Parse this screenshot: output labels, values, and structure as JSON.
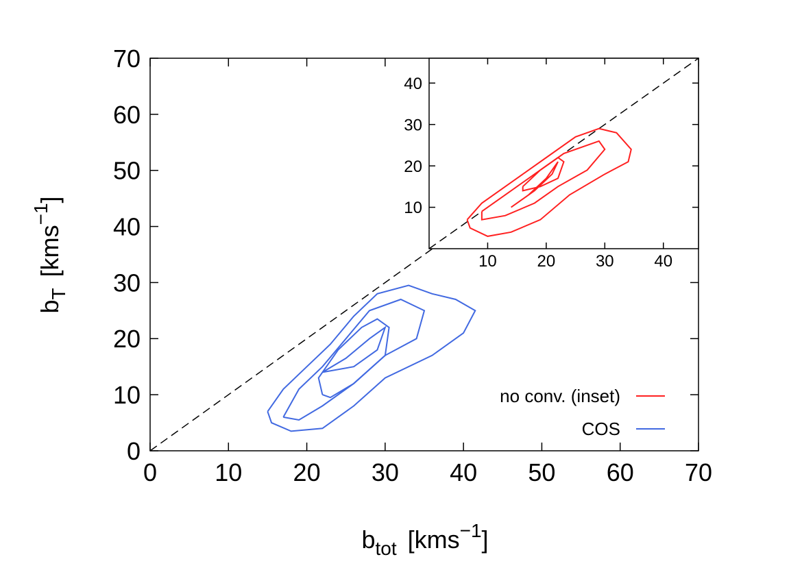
{
  "chart_data": [
    {
      "type": "line",
      "x_label": {
        "base": "b",
        "sub": "tot",
        "unit": "[kms",
        "sup": "−1",
        "close": "]"
      },
      "y_label": {
        "base": "b",
        "sub": "T",
        "unit": "[kms",
        "sup": "−1",
        "close": "]"
      },
      "xlim": [
        0,
        70
      ],
      "ylim": [
        0,
        70
      ],
      "xticks": [
        0,
        10,
        20,
        30,
        40,
        50,
        60,
        70
      ],
      "yticks": [
        0,
        10,
        20,
        30,
        40,
        50,
        60,
        70
      ],
      "legend": "lower right",
      "series": [
        {
          "name": "COS",
          "color": "#4169e1",
          "contours": [
            {
              "x": [
                15,
                17,
                20,
                23,
                26,
                29,
                33,
                36,
                39,
                41.5,
                40,
                36,
                30,
                26,
                22,
                18,
                15.5,
                15
              ],
              "y": [
                7,
                11,
                15,
                19,
                24,
                28,
                29.5,
                28,
                27,
                25,
                21,
                17,
                13,
                8,
                4,
                3.5,
                5,
                7
              ]
            },
            {
              "x": [
                17,
                19,
                22,
                25,
                28,
                32,
                35,
                34,
                30,
                26,
                22,
                19,
                17
              ],
              "y": [
                6,
                11,
                15,
                20,
                25,
                27,
                25,
                20,
                17,
                12,
                8,
                5.5,
                6
              ]
            },
            {
              "x": [
                22,
                21.5,
                24,
                27,
                29,
                30.5,
                30,
                26,
                23,
                22
              ],
              "y": [
                10,
                13,
                18,
                22,
                23.5,
                22,
                17,
                12,
                9.5,
                10
              ]
            },
            {
              "x": [
                22,
                25,
                28,
                30,
                29,
                26,
                22
              ],
              "y": [
                14,
                16.5,
                20,
                22,
                18,
                15,
                14
              ]
            }
          ]
        }
      ]
    },
    {
      "type": "line",
      "xlim": [
        0,
        46
      ],
      "ylim": [
        0,
        46
      ],
      "xticks": [
        10,
        20,
        30,
        40
      ],
      "yticks": [
        10,
        20,
        30,
        40
      ],
      "series": [
        {
          "name": "no conv. (inset)",
          "color": "#ff2020",
          "contours": [
            {
              "x": [
                6.5,
                9,
                14,
                20,
                25,
                29,
                32,
                34.5,
                34,
                30,
                24,
                19,
                14,
                10,
                7,
                6.5
              ],
              "y": [
                7,
                11,
                16,
                22,
                27,
                29,
                28,
                24,
                21,
                18,
                13,
                7,
                4,
                3,
                5,
                7
              ]
            },
            {
              "x": [
                9,
                13,
                18,
                23,
                29,
                30,
                27,
                22,
                18,
                13,
                9,
                9
              ],
              "y": [
                9,
                13,
                18,
                23,
                26,
                24,
                19,
                15,
                11,
                8,
                7,
                9
              ]
            },
            {
              "x": [
                16,
                19,
                22,
                23,
                22,
                19,
                16,
                16
              ],
              "y": [
                15,
                19,
                22,
                21,
                17,
                15,
                14,
                15
              ]
            },
            {
              "x": [
                14,
                17,
                20,
                22,
                21,
                18,
                14
              ],
              "y": [
                10,
                13,
                17,
                21,
                18,
                14,
                10
              ]
            }
          ]
        }
      ]
    }
  ]
}
